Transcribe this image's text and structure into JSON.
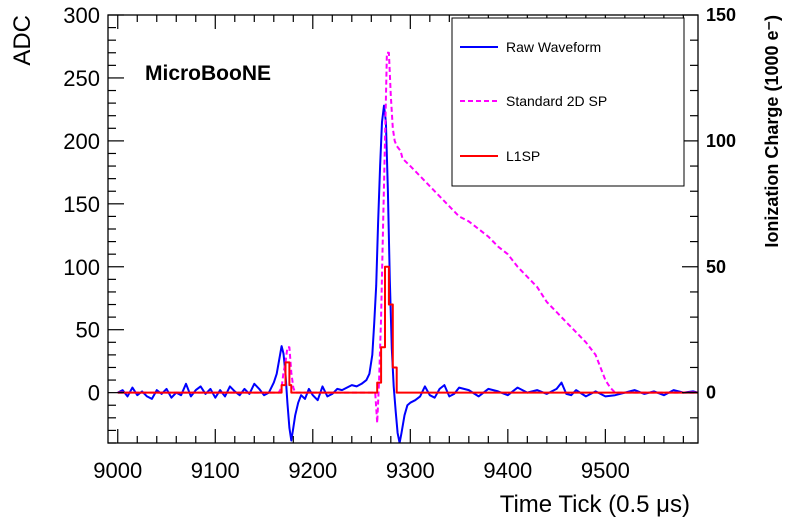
{
  "chart_data": {
    "type": "line",
    "annotation": "MicroBooNE",
    "xlabel": "Time Tick (0.5 μs)",
    "ylabel": "ADC",
    "y2label": "Ionization Charge (1000 e⁻)",
    "xlim": [
      8990,
      9595
    ],
    "ylim": [
      -40,
      300
    ],
    "y2lim": [
      -20,
      150
    ],
    "x_ticks": [
      9000,
      9100,
      9200,
      9300,
      9400,
      9500
    ],
    "y_ticks": [
      0,
      50,
      100,
      150,
      200,
      250,
      300
    ],
    "y2_ticks": [
      0,
      50,
      100,
      150
    ],
    "grid": false,
    "legend_position": "top-right",
    "series": [
      {
        "name": "Raw Waveform",
        "axis": "left",
        "color": "#0000ff",
        "style": "solid",
        "x": [
          9000,
          9005,
          9010,
          9015,
          9020,
          9025,
          9030,
          9035,
          9040,
          9045,
          9050,
          9055,
          9060,
          9065,
          9070,
          9075,
          9080,
          9085,
          9090,
          9095,
          9100,
          9105,
          9110,
          9115,
          9120,
          9125,
          9130,
          9135,
          9140,
          9145,
          9150,
          9155,
          9160,
          9163,
          9166,
          9168,
          9170,
          9172,
          9174,
          9176,
          9178,
          9180,
          9182,
          9185,
          9188,
          9192,
          9196,
          9200,
          9205,
          9210,
          9215,
          9220,
          9225,
          9230,
          9235,
          9240,
          9245,
          9250,
          9255,
          9258,
          9261,
          9263,
          9265,
          9267,
          9269,
          9271,
          9273,
          9275,
          9277,
          9279,
          9281,
          9283,
          9285,
          9287,
          9289,
          9291,
          9294,
          9297,
          9300,
          9305,
          9310,
          9315,
          9320,
          9325,
          9330,
          9335,
          9340,
          9345,
          9350,
          9360,
          9370,
          9380,
          9390,
          9400,
          9410,
          9420,
          9430,
          9440,
          9450,
          9455,
          9460,
          9465,
          9470,
          9480,
          9490,
          9500,
          9510,
          9520,
          9530,
          9540,
          9550,
          9560,
          9570,
          9580,
          9590,
          9595
        ],
        "y": [
          0,
          2,
          -3,
          4,
          -2,
          1,
          -3,
          -5,
          2,
          -1,
          3,
          -4,
          0,
          -2,
          7,
          -3,
          2,
          5,
          -1,
          3,
          -4,
          2,
          -3,
          5,
          1,
          -2,
          3,
          -1,
          7,
          3,
          -2,
          0,
          8,
          15,
          28,
          37,
          31,
          15,
          -8,
          -28,
          -38,
          -28,
          -18,
          -8,
          -2,
          -5,
          3,
          -2,
          -6,
          5,
          -3,
          -1,
          3,
          2,
          4,
          6,
          5,
          7,
          10,
          15,
          30,
          55,
          85,
          135,
          180,
          215,
          228,
          215,
          160,
          90,
          35,
          5,
          -15,
          -32,
          -40,
          -32,
          -18,
          -10,
          -8,
          -6,
          -3,
          5,
          -2,
          -4,
          3,
          6,
          -3,
          -1,
          4,
          2,
          -3,
          3,
          1,
          -2,
          4,
          0,
          2,
          -1,
          3,
          8,
          -1,
          -2,
          2,
          -3,
          1,
          -3,
          -2,
          0,
          2,
          -1,
          1,
          -2,
          2,
          0,
          1,
          0
        ]
      },
      {
        "name": "Standard 2D SP",
        "axis": "right",
        "color": "#ff00ff",
        "style": "dashed",
        "x": [
          9000,
          9165,
          9168,
          9170,
          9172,
          9174,
          9176,
          9178,
          9180,
          9182,
          9264,
          9266,
          9268,
          9270,
          9272,
          9274,
          9276,
          9278,
          9280,
          9282,
          9284,
          9286,
          9288,
          9290,
          9292,
          9300,
          9310,
          9320,
          9330,
          9340,
          9350,
          9360,
          9370,
          9380,
          9390,
          9400,
          9410,
          9420,
          9430,
          9440,
          9450,
          9460,
          9470,
          9480,
          9490,
          9495,
          9500,
          9505,
          9510,
          9595
        ],
        "y": [
          0,
          0,
          2,
          8,
          12,
          18,
          18,
          8,
          2,
          0,
          0,
          -12,
          5,
          30,
          65,
          100,
          135,
          135,
          118,
          105,
          100,
          98,
          97,
          96,
          93,
          90,
          86,
          82,
          78,
          74,
          70,
          68,
          65,
          62,
          58,
          55,
          50,
          46,
          42,
          36,
          32,
          28,
          24,
          20,
          15,
          10,
          5,
          2,
          0,
          0
        ]
      },
      {
        "name": "L1SP",
        "axis": "right",
        "color": "#ff0000",
        "style": "step",
        "x": [
          9000,
          9166,
          9168,
          9172,
          9176,
          9178,
          9262,
          9266,
          9270,
          9274,
          9278,
          9282,
          9286,
          9595
        ],
        "y": [
          0,
          0,
          3,
          12,
          3,
          0,
          0,
          4,
          18,
          50,
          35,
          10,
          0,
          0
        ]
      }
    ]
  }
}
